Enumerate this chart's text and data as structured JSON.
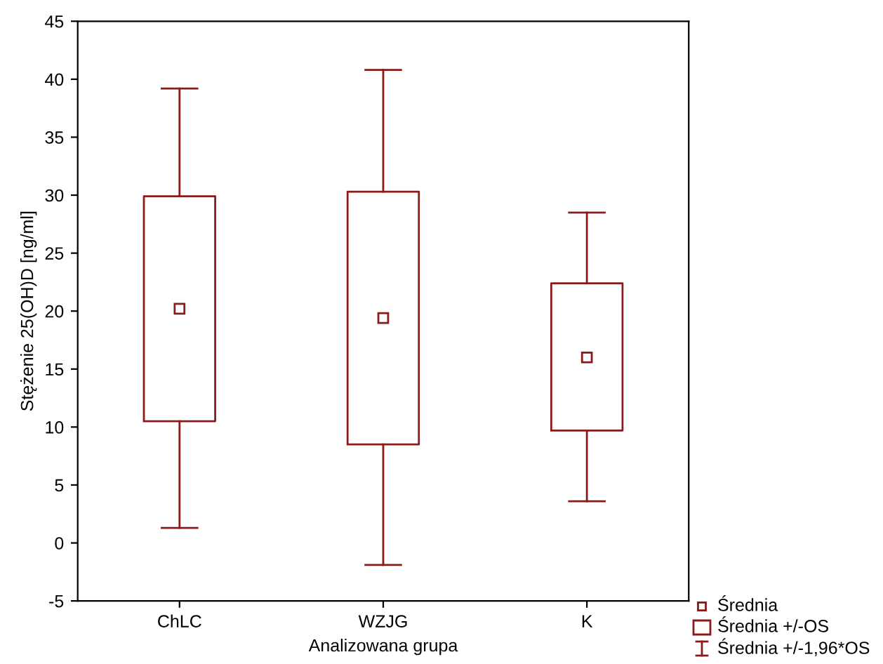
{
  "chart_data": {
    "type": "box",
    "xlabel": "Analizowana grupa",
    "ylabel": "Stężenie 25(OH)D [ng/ml]",
    "categories": [
      "ChLC",
      "WZJG",
      "K"
    ],
    "boxes": [
      {
        "low": 1.3,
        "q1": 10.5,
        "median": 20.2,
        "q3": 29.9,
        "high": 39.2
      },
      {
        "low": -1.9,
        "q1": 8.5,
        "median": 19.4,
        "q3": 30.3,
        "high": 40.8
      },
      {
        "low": 3.6,
        "q1": 9.7,
        "median": 16.0,
        "q3": 22.4,
        "high": 28.5
      }
    ],
    "color": "#8b1a1a",
    "ylim": [
      -5,
      45
    ],
    "yticks": [
      -5,
      0,
      5,
      10,
      15,
      20,
      25,
      30,
      35,
      40,
      45
    ],
    "grid": false,
    "marker": "square",
    "annotations": [
      "Średnia",
      "Średnia +/-OS",
      "Średnia +/-1,96*OS"
    ]
  }
}
